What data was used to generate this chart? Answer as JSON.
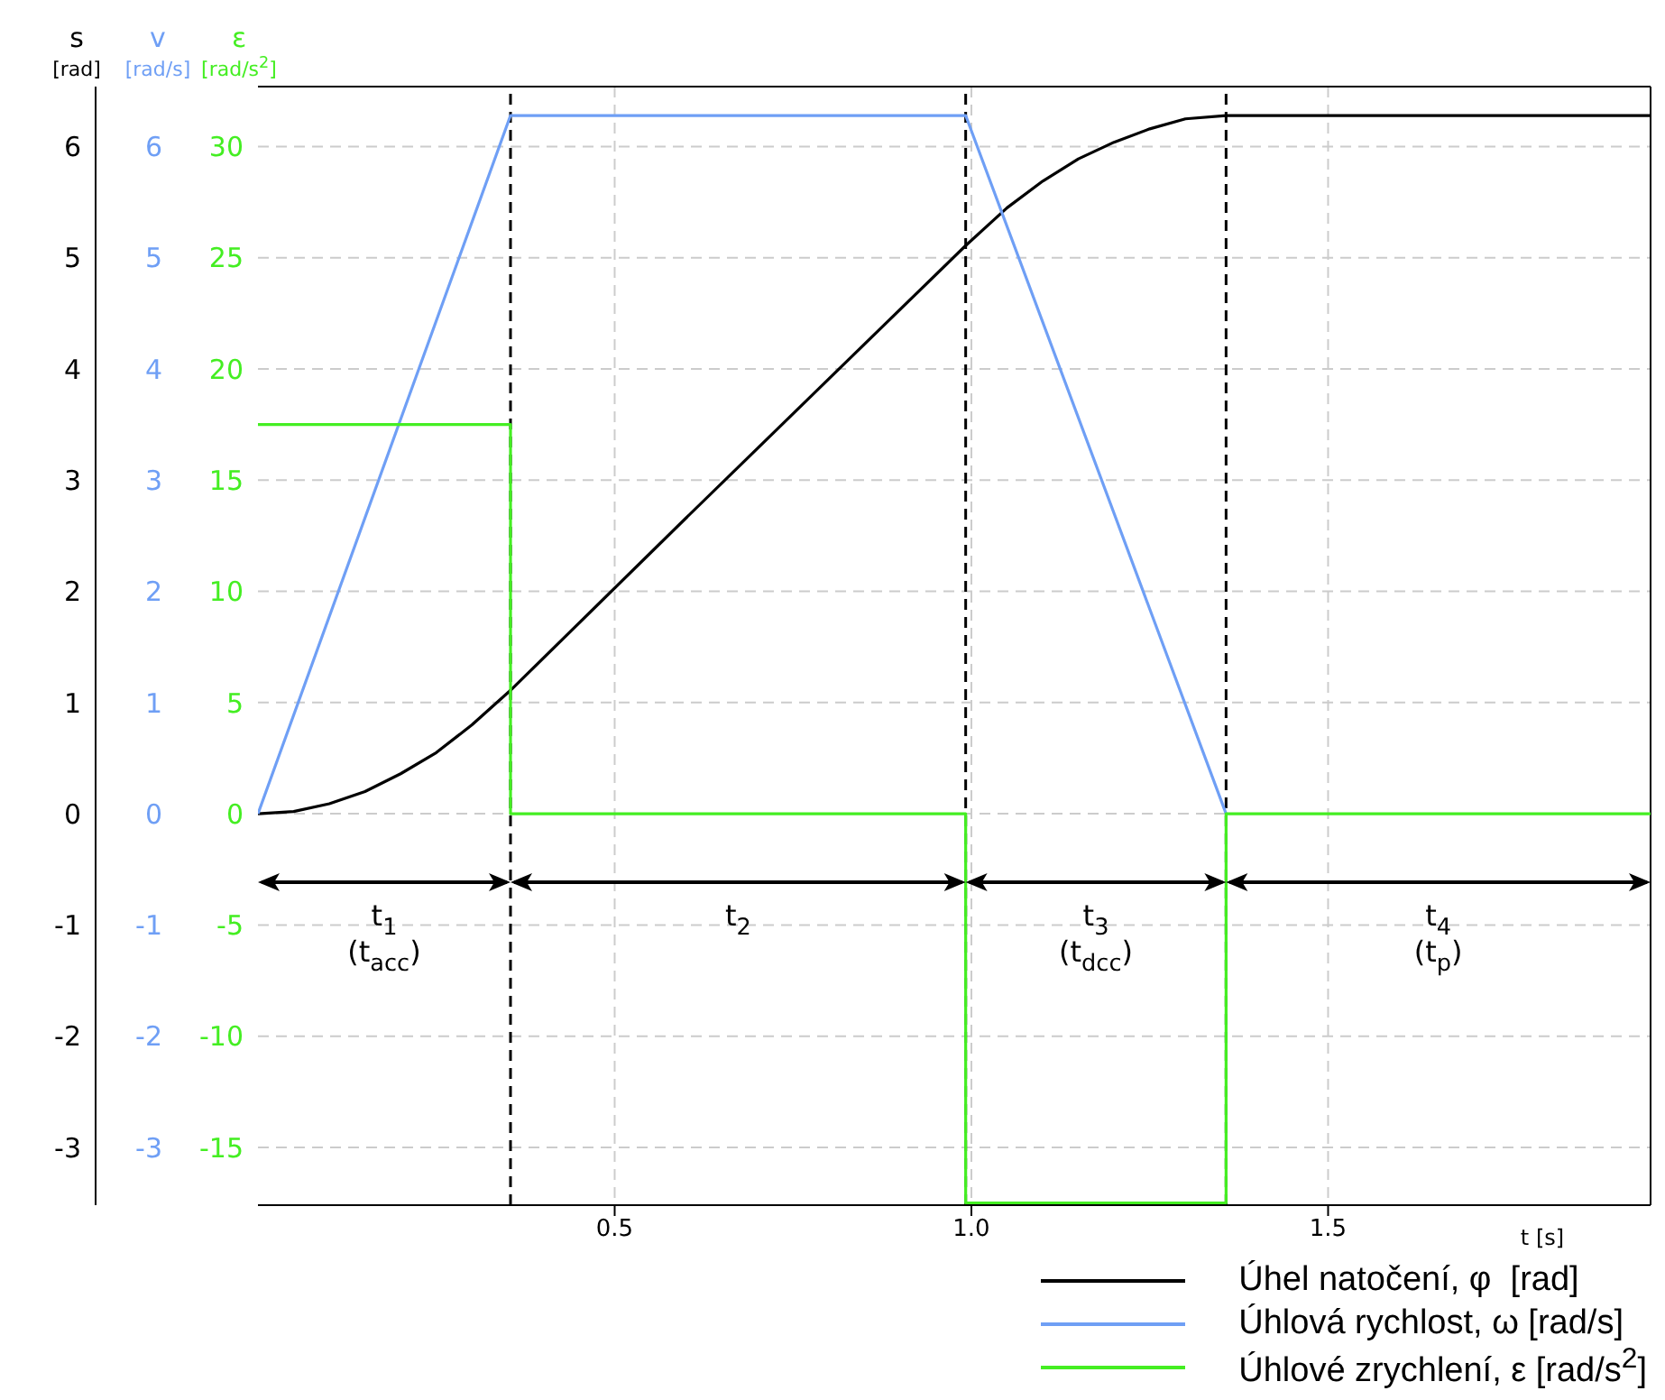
{
  "chart_data": {
    "type": "line",
    "xlabel": "t [s]",
    "ylabel": "ε [rad/s$^{2}$]",
    "y2label": "v [rad/s]",
    "y3label": "s [rad]",
    "xlim": [
      0,
      1.952
    ],
    "xticks": [
      0.5,
      {
        "value": 1,
        "label": "1.0"
      },
      1.5
    ],
    "ylim": [
      -17.6,
      32.7
    ],
    "yticks": [
      -15,
      -10,
      -5,
      0,
      5,
      10,
      15,
      20,
      25,
      30
    ],
    "y2lim": [
      -3.52,
      6.54
    ],
    "y2ticks": [
      -3,
      -2,
      -1,
      0,
      1,
      2,
      3,
      4,
      5,
      6
    ],
    "y3lim": [
      -3.52,
      6.54
    ],
    "y3ticks": [
      -3,
      -2,
      -1,
      0,
      1,
      2,
      3,
      4,
      5,
      6
    ],
    "grid": true,
    "legend": "bottom right",
    "marker": "none",
    "line_style": "solid",
    "series": [
      {
        "name": "Úhel natočení, φ  [rad]",
        "color": "#000000",
        "axis": "y3",
        "x": [
          0,
          0.05,
          0.1,
          0.15,
          0.2,
          0.25,
          0.3,
          0.354,
          0.6,
          0.8,
          0.992,
          1.05,
          1.1,
          1.15,
          1.2,
          1.25,
          1.3,
          1.357,
          1.952
        ],
        "values": [
          0,
          0.02,
          0.09,
          0.2,
          0.36,
          0.55,
          0.8,
          1.11,
          2.66,
          3.91,
          5.11,
          5.45,
          5.69,
          5.89,
          6.04,
          6.16,
          6.25,
          6.28,
          6.28
        ]
      },
      {
        "name": "Úhlová rychlost, ω [rad/s]",
        "color": "#6f9ff5",
        "axis": "y2",
        "x": [
          0,
          0.354,
          0.992,
          1.357
        ],
        "values": [
          0,
          6.28,
          6.28,
          0
        ]
      },
      {
        "name": "Úhlové zrychlení, ε [rad/s$^{2}$]",
        "color": "#44ee22",
        "x": [
          0,
          0.354,
          0.354,
          0.992,
          0.992,
          1.357,
          1.357,
          1.952
        ],
        "values": [
          17.5,
          17.5,
          0,
          0,
          -17.5,
          -17.5,
          0,
          0
        ]
      }
    ],
    "ref_lines": [
      {
        "axis": "x",
        "value": 0.354,
        "color": "#000000",
        "line_style": "dashed"
      },
      {
        "axis": "x",
        "value": 0.992,
        "color": "#000000",
        "line_style": "dashed"
      },
      {
        "axis": "x",
        "value": 1.357,
        "color": "#000000",
        "line_style": "dashed"
      }
    ],
    "annotations": [
      "t$_{1}$ (t$_{acc}$)",
      "t$_{2}$",
      "t$_{3}$ (t$_{dcc}$)",
      "t$_{4}$ (t$_{p}$)"
    ]
  }
}
